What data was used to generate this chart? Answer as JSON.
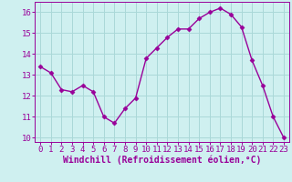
{
  "x": [
    0,
    1,
    2,
    3,
    4,
    5,
    6,
    7,
    8,
    9,
    10,
    11,
    12,
    13,
    14,
    15,
    16,
    17,
    18,
    19,
    20,
    21,
    22,
    23
  ],
  "y": [
    13.4,
    13.1,
    12.3,
    12.2,
    12.5,
    12.2,
    11.0,
    10.7,
    11.4,
    11.9,
    13.8,
    14.3,
    14.8,
    15.2,
    15.2,
    15.7,
    16.0,
    16.2,
    15.9,
    15.3,
    13.7,
    12.5,
    11.0,
    10.0
  ],
  "line_color": "#990099",
  "marker": "D",
  "marker_size": 2.5,
  "bg_color": "#cff0f0",
  "grid_color": "#aad8d8",
  "xlabel": "Windchill (Refroidissement éolien,°C)",
  "xlabel_color": "#990099",
  "tick_color": "#990099",
  "ylim": [
    9.8,
    16.5
  ],
  "xlim": [
    -0.5,
    23.5
  ],
  "yticks": [
    10,
    11,
    12,
    13,
    14,
    15,
    16
  ],
  "xticks": [
    0,
    1,
    2,
    3,
    4,
    5,
    6,
    7,
    8,
    9,
    10,
    11,
    12,
    13,
    14,
    15,
    16,
    17,
    18,
    19,
    20,
    21,
    22,
    23
  ],
  "font_size": 6.5,
  "xlabel_font_size": 7,
  "line_width": 1.0
}
